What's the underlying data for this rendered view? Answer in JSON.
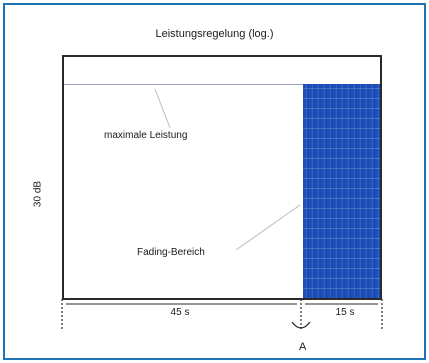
{
  "diagram": {
    "title": "Leistungsregelung (log.)",
    "y_axis_label": "30 dB",
    "annotations": {
      "max_power": "maximale Leistung",
      "fading": "Fading-Bereich"
    },
    "durations": [
      "45 s",
      "15 s"
    ],
    "marker_letter": "A",
    "colors": {
      "frame": "#1c73b6",
      "fade_fill": "#1f4fb8"
    }
  }
}
